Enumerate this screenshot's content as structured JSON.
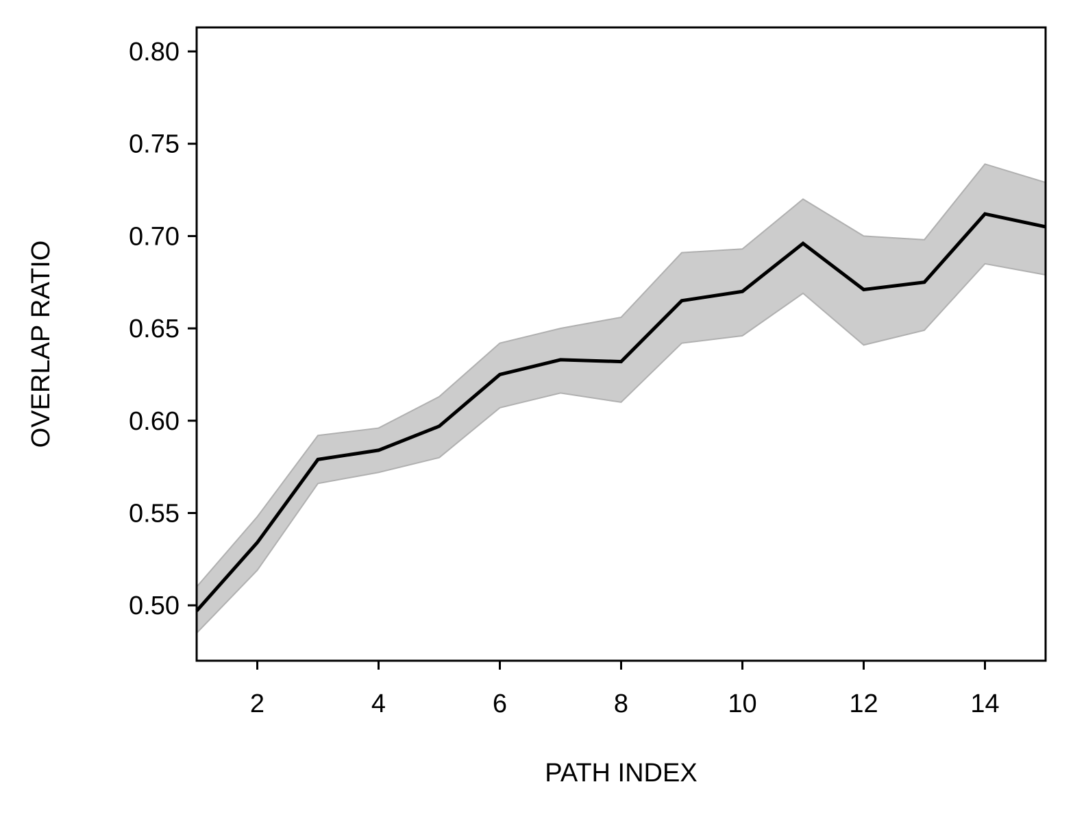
{
  "chart_data": {
    "type": "line",
    "title": "",
    "xlabel": "PATH INDEX",
    "ylabel": "OVERLAP RATIO",
    "xlim": [
      1,
      15
    ],
    "ylim": [
      0.47,
      0.813
    ],
    "grid": false,
    "x_ticks": [
      2,
      4,
      6,
      8,
      10,
      12,
      14
    ],
    "x_tick_labels": [
      "2",
      "4",
      "6",
      "8",
      "10",
      "12",
      "14"
    ],
    "y_ticks": [
      0.5,
      0.55,
      0.6,
      0.65,
      0.7,
      0.75,
      0.8
    ],
    "y_tick_labels": [
      "0.50",
      "0.55",
      "0.60",
      "0.65",
      "0.70",
      "0.75",
      "0.80"
    ],
    "x": [
      1,
      2,
      3,
      4,
      5,
      6,
      7,
      8,
      9,
      10,
      11,
      12,
      13,
      14,
      15
    ],
    "series": [
      {
        "values": [
          0.497,
          0.534,
          0.579,
          0.584,
          0.597,
          0.625,
          0.633,
          0.632,
          0.665,
          0.67,
          0.696,
          0.671,
          0.675,
          0.712,
          0.705
        ],
        "lower": [
          0.485,
          0.519,
          0.566,
          0.572,
          0.58,
          0.607,
          0.615,
          0.61,
          0.642,
          0.646,
          0.669,
          0.641,
          0.649,
          0.685,
          0.679
        ],
        "upper": [
          0.51,
          0.548,
          0.592,
          0.596,
          0.613,
          0.642,
          0.65,
          0.656,
          0.691,
          0.693,
          0.72,
          0.7,
          0.698,
          0.739,
          0.729
        ],
        "line_color": "#000000",
        "band_color": "#cccccc",
        "band_edge_color": "#b0b0b0"
      }
    ]
  }
}
